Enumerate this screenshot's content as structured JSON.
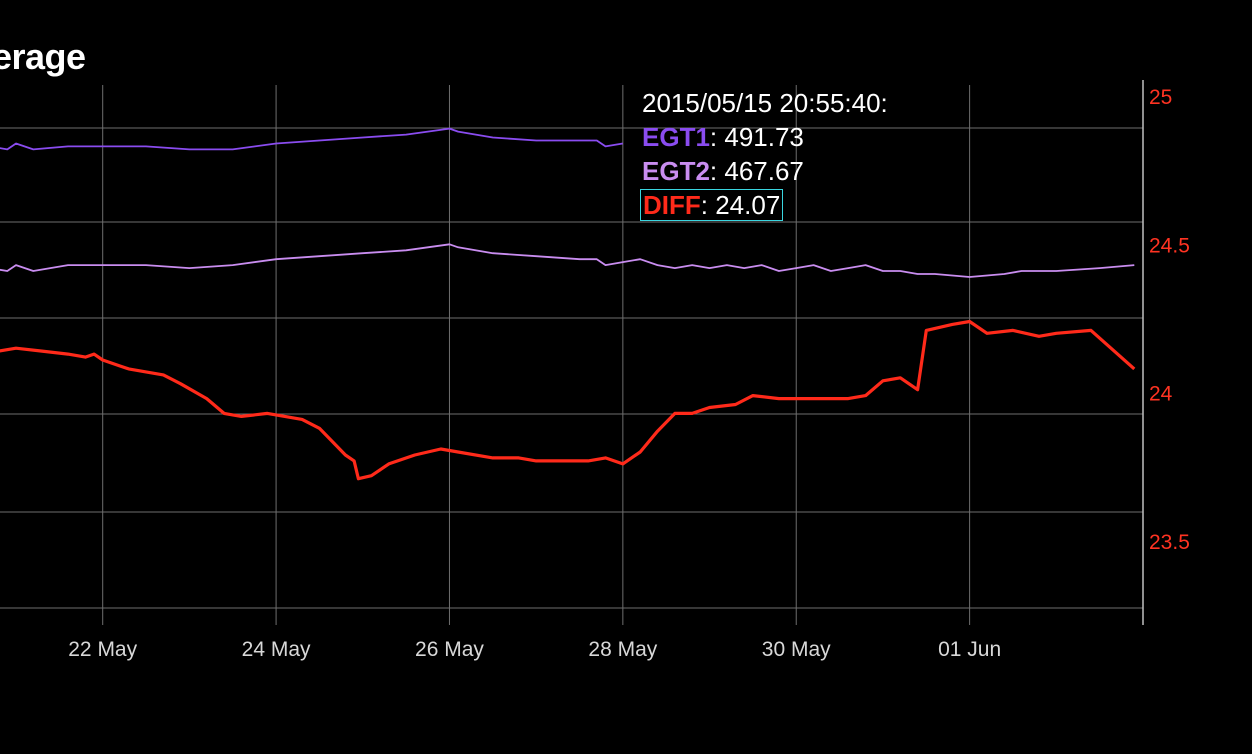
{
  "title": "erage",
  "colors": {
    "background": "#000000",
    "grid": "#6e6e6e",
    "axis": "#bfbfbf",
    "y_axis_right": "#ff3322",
    "tooltip_border": "#3ad6e0"
  },
  "tooltip": {
    "timestamp": "2015/05/15 20:55:40:",
    "rows": [
      {
        "name": "EGT1",
        "value": ": 491.73",
        "color": "#8a4cf0"
      },
      {
        "name": "EGT2",
        "value": ": 467.67",
        "color": "#c98df0"
      },
      {
        "name": "DIFF",
        "value": ": 24.07",
        "color": "#ff2a1a",
        "selected": true
      }
    ]
  },
  "chart_data": {
    "type": "line",
    "title": "erage",
    "x_ticks": [
      "22 May",
      "24 May",
      "26 May",
      "28 May",
      "30 May",
      "01 Jun"
    ],
    "x_tick_days": [
      22,
      24,
      26,
      28,
      30,
      32
    ],
    "x_range_days": [
      20.7,
      34.0
    ],
    "y_right_axis": {
      "ticks": [
        "25",
        "24.5",
        "24",
        "23.5"
      ],
      "tick_values": [
        25,
        24.5,
        24,
        23.5
      ],
      "range": [
        23.24,
        25.05
      ],
      "color": "#ff3322"
    },
    "grid": true,
    "series": [
      {
        "name": "EGT1",
        "color": "#8a4cf0",
        "points": [
          [
            20.7,
            24.83
          ],
          [
            20.9,
            24.82
          ],
          [
            21.0,
            24.84
          ],
          [
            21.2,
            24.82
          ],
          [
            21.6,
            24.83
          ],
          [
            22.0,
            24.83
          ],
          [
            22.5,
            24.83
          ],
          [
            23.0,
            24.82
          ],
          [
            23.5,
            24.82
          ],
          [
            24.0,
            24.84
          ],
          [
            24.5,
            24.85
          ],
          [
            25.0,
            24.86
          ],
          [
            25.5,
            24.87
          ],
          [
            26.0,
            24.89
          ],
          [
            26.1,
            24.88
          ],
          [
            26.5,
            24.86
          ],
          [
            27.0,
            24.85
          ],
          [
            27.5,
            24.85
          ],
          [
            27.7,
            24.85
          ],
          [
            27.8,
            24.83
          ],
          [
            28.0,
            24.84
          ]
        ]
      },
      {
        "name": "EGT2",
        "color": "#c98df0",
        "points": [
          [
            20.7,
            24.42
          ],
          [
            20.9,
            24.41
          ],
          [
            21.0,
            24.43
          ],
          [
            21.2,
            24.41
          ],
          [
            21.6,
            24.43
          ],
          [
            22.0,
            24.43
          ],
          [
            22.5,
            24.43
          ],
          [
            23.0,
            24.42
          ],
          [
            23.5,
            24.43
          ],
          [
            24.0,
            24.45
          ],
          [
            24.5,
            24.46
          ],
          [
            25.0,
            24.47
          ],
          [
            25.5,
            24.48
          ],
          [
            26.0,
            24.5
          ],
          [
            26.1,
            24.49
          ],
          [
            26.5,
            24.47
          ],
          [
            27.0,
            24.46
          ],
          [
            27.5,
            24.45
          ],
          [
            27.7,
            24.45
          ],
          [
            27.8,
            24.43
          ],
          [
            28.0,
            24.44
          ],
          [
            28.2,
            24.45
          ],
          [
            28.4,
            24.43
          ],
          [
            28.6,
            24.42
          ],
          [
            28.8,
            24.43
          ],
          [
            29.0,
            24.42
          ],
          [
            29.2,
            24.43
          ],
          [
            29.4,
            24.42
          ],
          [
            29.6,
            24.43
          ],
          [
            29.8,
            24.41
          ],
          [
            30.0,
            24.42
          ],
          [
            30.2,
            24.43
          ],
          [
            30.4,
            24.41
          ],
          [
            30.6,
            24.42
          ],
          [
            30.8,
            24.43
          ],
          [
            31.0,
            24.41
          ],
          [
            31.2,
            24.41
          ],
          [
            31.4,
            24.4
          ],
          [
            31.6,
            24.4
          ],
          [
            32.0,
            24.39
          ],
          [
            32.4,
            24.4
          ],
          [
            32.6,
            24.41
          ],
          [
            33.0,
            24.41
          ],
          [
            33.5,
            24.42
          ],
          [
            33.9,
            24.43
          ]
        ]
      },
      {
        "name": "DIFF",
        "color": "#ff2a1a",
        "points": [
          [
            20.7,
            24.14
          ],
          [
            20.8,
            24.14
          ],
          [
            21.0,
            24.15
          ],
          [
            21.3,
            24.14
          ],
          [
            21.6,
            24.13
          ],
          [
            21.8,
            24.12
          ],
          [
            21.9,
            24.13
          ],
          [
            22.0,
            24.11
          ],
          [
            22.2,
            24.09
          ],
          [
            22.3,
            24.08
          ],
          [
            22.5,
            24.07
          ],
          [
            22.7,
            24.06
          ],
          [
            22.9,
            24.03
          ],
          [
            23.2,
            23.98
          ],
          [
            23.4,
            23.93
          ],
          [
            23.6,
            23.92
          ],
          [
            23.9,
            23.93
          ],
          [
            24.1,
            23.92
          ],
          [
            24.3,
            23.91
          ],
          [
            24.5,
            23.88
          ],
          [
            24.7,
            23.82
          ],
          [
            24.8,
            23.79
          ],
          [
            24.9,
            23.77
          ],
          [
            24.95,
            23.71
          ],
          [
            25.1,
            23.72
          ],
          [
            25.3,
            23.76
          ],
          [
            25.6,
            23.79
          ],
          [
            25.9,
            23.81
          ],
          [
            26.1,
            23.8
          ],
          [
            26.5,
            23.78
          ],
          [
            26.8,
            23.78
          ],
          [
            27.0,
            23.77
          ],
          [
            27.3,
            23.77
          ],
          [
            27.6,
            23.77
          ],
          [
            27.8,
            23.78
          ],
          [
            28.0,
            23.76
          ],
          [
            28.2,
            23.8
          ],
          [
            28.4,
            23.87
          ],
          [
            28.6,
            23.93
          ],
          [
            28.8,
            23.93
          ],
          [
            29.0,
            23.95
          ],
          [
            29.3,
            23.96
          ],
          [
            29.5,
            23.99
          ],
          [
            29.8,
            23.98
          ],
          [
            30.1,
            23.98
          ],
          [
            30.3,
            23.98
          ],
          [
            30.6,
            23.98
          ],
          [
            30.8,
            23.99
          ],
          [
            31.0,
            24.04
          ],
          [
            31.2,
            24.05
          ],
          [
            31.4,
            24.01
          ],
          [
            31.5,
            24.21
          ],
          [
            31.8,
            24.23
          ],
          [
            32.0,
            24.24
          ],
          [
            32.2,
            24.2
          ],
          [
            32.5,
            24.21
          ],
          [
            32.8,
            24.19
          ],
          [
            33.0,
            24.2
          ],
          [
            33.4,
            24.21
          ],
          [
            33.9,
            24.08
          ]
        ]
      }
    ]
  }
}
